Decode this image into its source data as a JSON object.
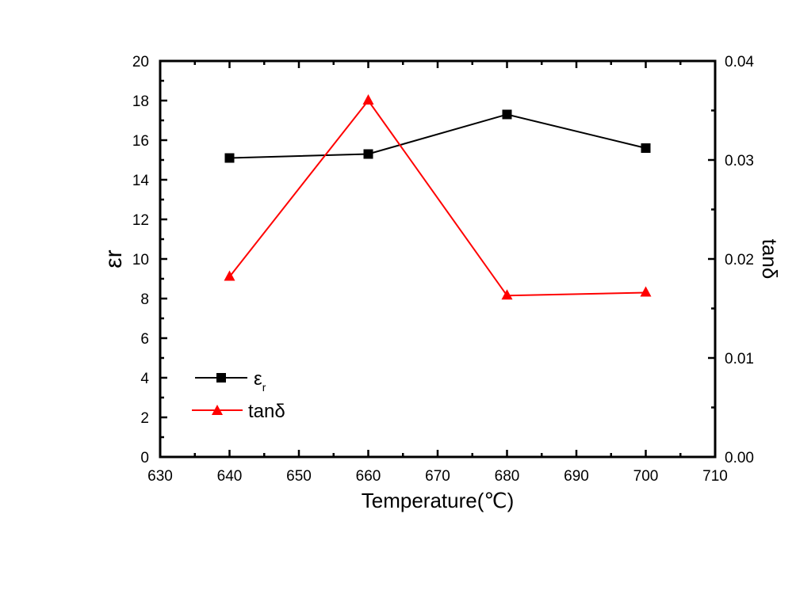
{
  "chart_data": {
    "type": "line",
    "xlabel": "Temperature(℃)",
    "ylabel_left": "εr",
    "ylabel_right": "tanδ",
    "x": [
      640,
      660,
      680,
      700
    ],
    "xlim": [
      630,
      710
    ],
    "ylim_left": [
      0,
      20
    ],
    "ylim_right": [
      0.0,
      0.04
    ],
    "x_ticks": [
      "630",
      "640",
      "650",
      "660",
      "670",
      "680",
      "690",
      "700",
      "710"
    ],
    "y_left_ticks": [
      "0",
      "2",
      "4",
      "6",
      "8",
      "10",
      "12",
      "14",
      "16",
      "18",
      "20"
    ],
    "y_right_ticks": [
      "0.00",
      "0.01",
      "0.02",
      "0.03",
      "0.04"
    ],
    "grid": false,
    "legend_position": "bottom-left",
    "series": [
      {
        "name": "εr",
        "axis": "left",
        "values": [
          15.1,
          15.3,
          17.3,
          15.6
        ],
        "color": "#000000",
        "marker": "square"
      },
      {
        "name": "tanδ",
        "axis": "right",
        "values": [
          0.0182,
          0.036,
          0.0163,
          0.0166
        ],
        "color": "#ff0000",
        "marker": "triangle"
      }
    ]
  }
}
